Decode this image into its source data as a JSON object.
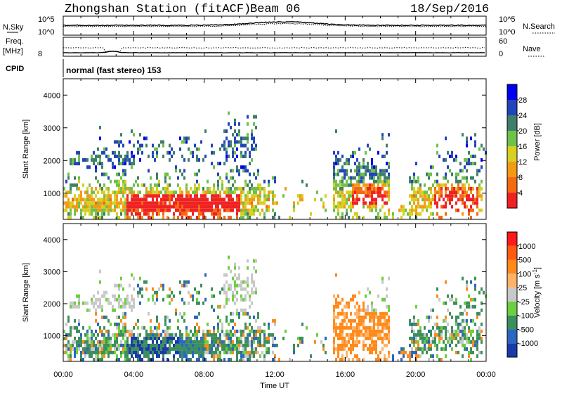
{
  "header": {
    "title": "Zhongshan Station (fitACF)",
    "beam": "Beam 06",
    "date": "18/Sep/2016"
  },
  "top_panels": {
    "nsky_label": "N.Sky",
    "nsearch_label": "N.Search",
    "nsky_ticks": [
      "10^5",
      "10^0"
    ],
    "nsearch_ticks": [
      "10^5",
      "10^0"
    ],
    "freq_label": "Freq.",
    "freq_unit": "[MHz]",
    "freq_tick": "8",
    "nave_label": "Nave",
    "nave_ticks": [
      "60",
      "0"
    ],
    "cpid_label": "CPID",
    "cpid_text": "normal (fast stereo) 153"
  },
  "colors": {
    "power_scale": [
      "#0000ee",
      "#2244bb",
      "#3f7f6a",
      "#6fc14a",
      "#d6d020",
      "#f29a16",
      "#f46a10",
      "#ee2222"
    ],
    "velocity_scale": [
      "#ff1a1a",
      "#ff5a10",
      "#ff8a1a",
      "#ffb36a",
      "#c8c8c8",
      "#6ccf3f",
      "#3c8f5c",
      "#2b66c0",
      "#1a3aa8"
    ]
  },
  "chart_data": [
    {
      "type": "heatmap",
      "panel": "power",
      "ylabel": "Slant Range [km]",
      "yticks": [
        "4000",
        "3000",
        "2000",
        "1000"
      ],
      "ylim": [
        200,
        4500
      ],
      "xlim": [
        "00:00",
        "24:00"
      ],
      "colorbar": {
        "label": "Power [dB]",
        "ticks": [
          "28",
          "24",
          "20",
          "16",
          "12",
          "8",
          "4"
        ],
        "range": [
          0,
          32
        ]
      }
    },
    {
      "type": "heatmap",
      "panel": "velocity",
      "ylabel": "Slant Range [km]",
      "yticks": [
        "4000",
        "3000",
        "2000",
        "1000"
      ],
      "ylim": [
        200,
        4500
      ],
      "xlim": [
        "00:00",
        "24:00"
      ],
      "xticks": [
        "00:00",
        "04:00",
        "08:00",
        "12:00",
        "16:00",
        "20:00",
        "00:00"
      ],
      "xlabel": "Time UT",
      "colorbar": {
        "label": "Velocity [m s",
        "label_sup": "-1",
        "label_end": "]",
        "ticks": [
          "1000",
          "500",
          "100",
          "25",
          "-25",
          "-100",
          "-500",
          "-1000"
        ]
      }
    }
  ]
}
